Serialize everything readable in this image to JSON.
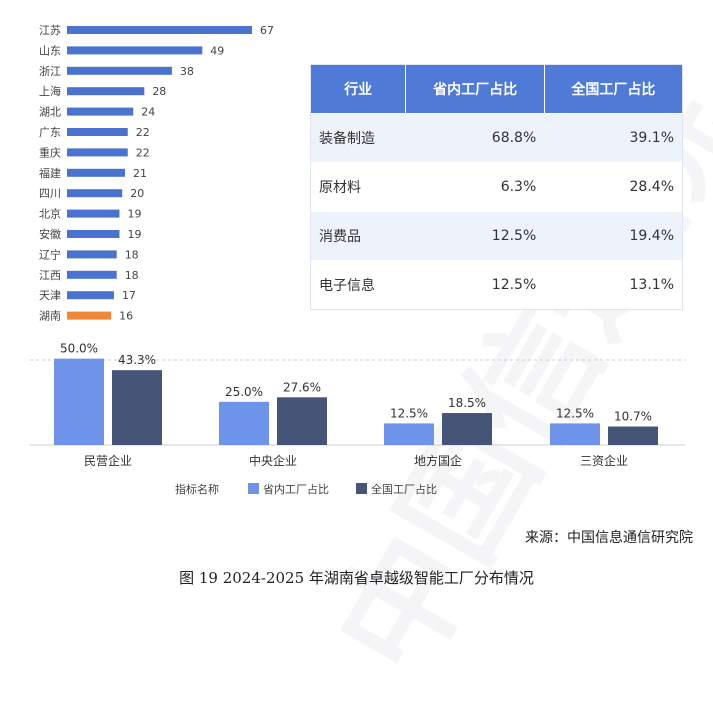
{
  "chart_data": [
    {
      "type": "bar",
      "orientation": "horizontal",
      "categories": [
        "江苏",
        "山东",
        "浙江",
        "上海",
        "湖北",
        "广东",
        "重庆",
        "福建",
        "四川",
        "北京",
        "安徽",
        "辽宁",
        "江西",
        "天津",
        "湖南"
      ],
      "values": [
        67,
        49,
        38,
        28,
        24,
        22,
        22,
        21,
        20,
        19,
        19,
        18,
        18,
        17,
        16
      ],
      "bar_color": "#4a72cf",
      "highlight_color": "#f0883c",
      "highlight_category": "湖南"
    },
    {
      "type": "table",
      "columns": [
        "行业",
        "省内工厂占比",
        "全国工厂占比"
      ],
      "rows": [
        [
          "装备制造",
          "68.8%",
          "39.1%"
        ],
        [
          "原材料",
          "6.3%",
          "28.4%"
        ],
        [
          "消费品",
          "12.5%",
          "19.4%"
        ],
        [
          "电子信息",
          "12.5%",
          "13.1%"
        ]
      ],
      "header_color": "#4f7ad6"
    },
    {
      "type": "bar",
      "categories": [
        "民营企业",
        "中央企业",
        "地方国企",
        "三资企业"
      ],
      "series": [
        {
          "name": "省内工厂占比",
          "values": [
            50.0,
            25.0,
            12.5,
            12.5
          ],
          "color": "#6e93e8"
        },
        {
          "name": "全国工厂占比",
          "values": [
            43.3,
            27.6,
            18.5,
            10.7
          ],
          "color": "#445577"
        }
      ],
      "value_labels": [
        [
          "50.0%",
          "25.0%",
          "12.5%",
          "12.5%"
        ],
        [
          "43.3%",
          "27.6%",
          "18.5%",
          "10.7%"
        ]
      ],
      "legend_title": "指标名称",
      "legend_position": "bottom",
      "ylim": [
        0,
        55
      ]
    }
  ],
  "source": "来源：中国信息通信研究院",
  "caption": "图 19 2024-2025 年湖南省卓越级智能工厂分布情况",
  "watermark": "中国信通院"
}
